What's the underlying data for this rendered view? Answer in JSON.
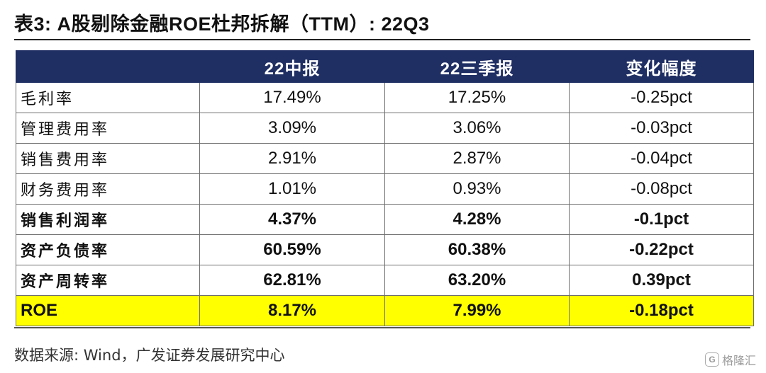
{
  "title": "表3:  A股剔除金融ROE杜邦拆解（TTM）:  22Q3",
  "table": {
    "headers": [
      "",
      "22中报",
      "22三季报",
      "变化幅度"
    ],
    "rows": [
      {
        "label": "毛利率",
        "h1": "17.49%",
        "q3": "17.25%",
        "chg": "-0.25pct"
      },
      {
        "label": "管理费用率",
        "h1": "3.09%",
        "q3": "3.06%",
        "chg": "-0.03pct"
      },
      {
        "label": "销售费用率",
        "h1": "2.91%",
        "q3": "2.87%",
        "chg": "-0.04pct"
      },
      {
        "label": "财务费用率",
        "h1": "1.01%",
        "q3": "0.93%",
        "chg": "-0.08pct"
      },
      {
        "label": "销售利润率",
        "h1": "4.37%",
        "q3": "4.28%",
        "chg": "-0.1pct"
      },
      {
        "label": "资产负债率",
        "h1": "60.59%",
        "q3": "60.38%",
        "chg": "-0.22pct"
      },
      {
        "label": "资产周转率",
        "h1": "62.81%",
        "q3": "63.20%",
        "chg": "0.39pct"
      },
      {
        "label": "ROE",
        "h1": "8.17%",
        "q3": "7.99%",
        "chg": "-0.18pct"
      }
    ]
  },
  "source": "数据来源:  Wind，广发证券发展研究中心",
  "watermark": {
    "text": "格隆汇",
    "icon": "G"
  },
  "colors": {
    "header_bg": "#1f2e63",
    "highlight": "#ffff00"
  }
}
